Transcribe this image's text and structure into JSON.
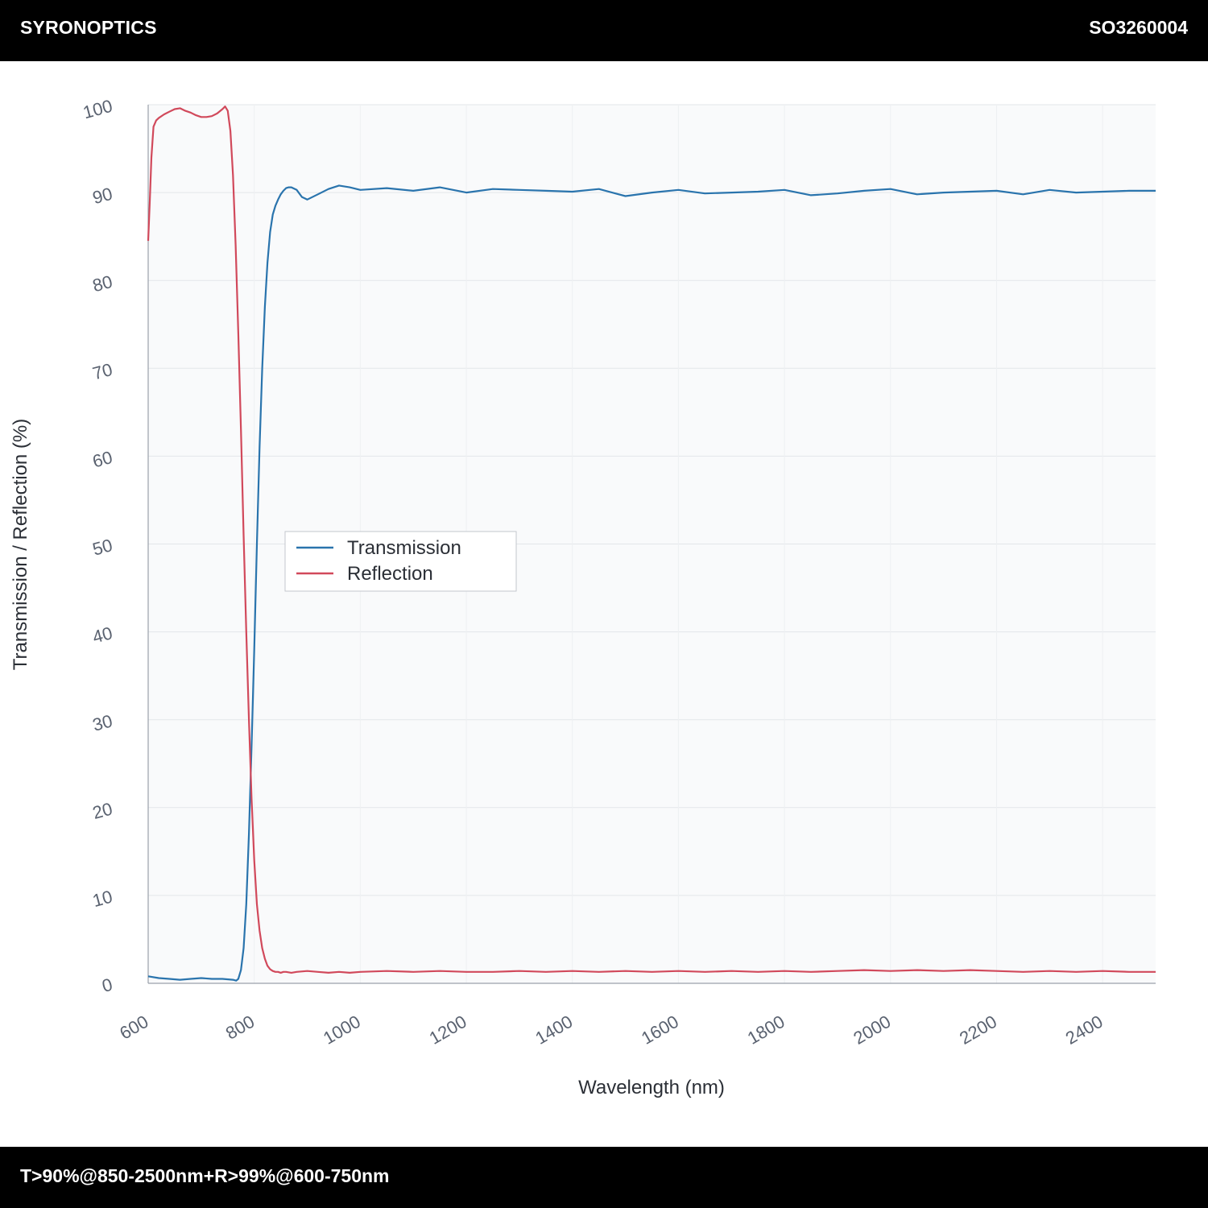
{
  "header": {
    "brand": "SYRONOPTICS",
    "part_number": "SO3260004"
  },
  "footer": {
    "spec": "T>90%@850-2500nm+R>99%@600-750nm"
  },
  "colors": {
    "transmission": "#2a74ad",
    "reflection": "#d1495b",
    "plot_background": "#f9fafb",
    "grid": "#e3e6ea"
  },
  "chart_data": {
    "type": "line",
    "xlabel": "Wavelength (nm)",
    "ylabel": "Transmission / Reflection (%)",
    "xlim": [
      600,
      2500
    ],
    "ylim": [
      0,
      100
    ],
    "xticks": [
      600,
      800,
      1000,
      1200,
      1400,
      1600,
      1800,
      2000,
      2200,
      2400
    ],
    "yticks": [
      0,
      10,
      20,
      30,
      40,
      50,
      60,
      70,
      80,
      90,
      100
    ],
    "grid": true,
    "legend_position": "center-left",
    "series": [
      {
        "name": "Transmission",
        "color": "#2a74ad",
        "x": [
          600,
          620,
          640,
          660,
          680,
          700,
          720,
          740,
          760,
          766,
          770,
          775,
          780,
          785,
          790,
          795,
          800,
          805,
          810,
          815,
          820,
          825,
          830,
          835,
          840,
          845,
          850,
          855,
          860,
          865,
          870,
          880,
          890,
          900,
          920,
          940,
          960,
          980,
          1000,
          1050,
          1100,
          1150,
          1200,
          1250,
          1300,
          1350,
          1400,
          1450,
          1500,
          1550,
          1600,
          1650,
          1700,
          1750,
          1800,
          1850,
          1900,
          1950,
          2000,
          2050,
          2100,
          2150,
          2200,
          2250,
          2300,
          2350,
          2400,
          2450,
          2500
        ],
        "y": [
          0.8,
          0.6,
          0.5,
          0.4,
          0.5,
          0.6,
          0.5,
          0.5,
          0.4,
          0.3,
          0.5,
          1.5,
          4,
          9,
          17,
          27,
          38,
          50,
          61,
          70,
          77,
          82,
          85.5,
          87.5,
          88.5,
          89.2,
          89.8,
          90.2,
          90.5,
          90.6,
          90.6,
          90.3,
          89.5,
          89.2,
          89.8,
          90.4,
          90.8,
          90.6,
          90.3,
          90.5,
          90.2,
          90.6,
          90.0,
          90.4,
          90.3,
          90.2,
          90.1,
          90.4,
          89.6,
          90.0,
          90.3,
          89.9,
          90.0,
          90.1,
          90.3,
          89.7,
          89.9,
          90.2,
          90.4,
          89.8,
          90.0,
          90.1,
          90.2,
          89.8,
          90.3,
          90.0,
          90.1,
          90.2,
          90.2
        ]
      },
      {
        "name": "Reflection",
        "color": "#d1495b",
        "x": [
          600,
          603,
          606,
          610,
          615,
          620,
          630,
          640,
          650,
          660,
          670,
          680,
          690,
          700,
          710,
          720,
          730,
          740,
          745,
          750,
          755,
          760,
          765,
          770,
          775,
          780,
          785,
          790,
          795,
          800,
          805,
          810,
          815,
          820,
          825,
          830,
          835,
          840,
          845,
          850,
          855,
          860,
          870,
          880,
          900,
          920,
          940,
          960,
          980,
          1000,
          1050,
          1100,
          1150,
          1200,
          1250,
          1300,
          1350,
          1400,
          1450,
          1500,
          1550,
          1600,
          1650,
          1700,
          1750,
          1800,
          1850,
          1900,
          1950,
          2000,
          2050,
          2100,
          2150,
          2200,
          2250,
          2300,
          2350,
          2400,
          2450,
          2500
        ],
        "y": [
          84.5,
          89,
          94,
          97.5,
          98.2,
          98.5,
          98.9,
          99.2,
          99.5,
          99.6,
          99.3,
          99.1,
          98.8,
          98.6,
          98.6,
          98.7,
          99.0,
          99.5,
          99.8,
          99.3,
          97,
          92,
          84,
          74,
          63,
          51,
          40,
          30,
          21,
          14,
          9,
          6,
          4,
          2.8,
          2.0,
          1.6,
          1.4,
          1.3,
          1.3,
          1.2,
          1.3,
          1.3,
          1.2,
          1.3,
          1.4,
          1.3,
          1.2,
          1.3,
          1.2,
          1.3,
          1.4,
          1.3,
          1.4,
          1.3,
          1.3,
          1.4,
          1.3,
          1.4,
          1.3,
          1.4,
          1.3,
          1.4,
          1.3,
          1.4,
          1.3,
          1.4,
          1.3,
          1.4,
          1.5,
          1.4,
          1.5,
          1.4,
          1.5,
          1.4,
          1.3,
          1.4,
          1.3,
          1.4,
          1.3,
          1.3
        ]
      }
    ]
  }
}
